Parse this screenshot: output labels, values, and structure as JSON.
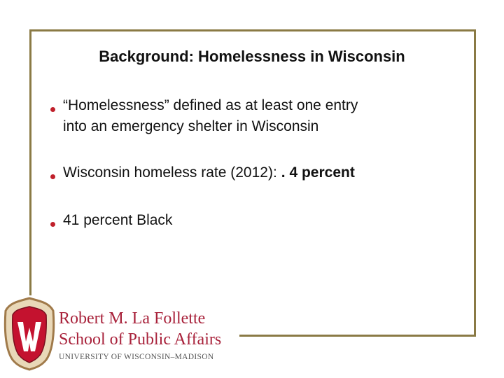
{
  "slide": {
    "title": "Background: Homelessness in Wisconsin",
    "bullets": [
      {
        "lines": [
          "“Homelessness” defined as at least one entry",
          "into an emergency shelter in Wisconsin"
        ]
      },
      {
        "text": "Wisconsin homeless rate (2012):",
        "bold": ". 4 percent"
      },
      {
        "text": "41 percent Black"
      }
    ]
  },
  "logo": {
    "line1": "Robert M. La Follette",
    "line2": "School of Public Affairs",
    "line3": "UNIVERSITY OF WISCONSIN–MADISON"
  }
}
